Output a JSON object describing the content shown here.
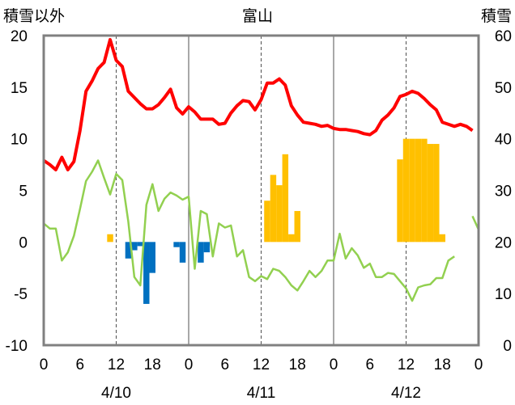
{
  "chart_data": {
    "type": "bar",
    "title": "富山",
    "ylabel_left": "積雪以外",
    "ylabel_right": "積雪",
    "ylim_left": [
      -10,
      20
    ],
    "yticks_left": [
      20,
      15,
      10,
      5,
      0,
      -5,
      -10
    ],
    "ylim_right": [
      0,
      60
    ],
    "yticks_right": [
      60,
      50,
      40,
      30,
      20,
      10,
      0
    ],
    "x_hours": [
      0,
      72
    ],
    "x_ticks": [
      "0",
      "6",
      "12",
      "18",
      "0",
      "6",
      "12",
      "18",
      "0",
      "6",
      "12",
      "18",
      "0"
    ],
    "dates": [
      "4/10",
      "4/11",
      "4/12"
    ],
    "grid": "vertical dashed at 12h, solid at day boundaries",
    "colors": {
      "temperature": "#ff0000",
      "humidity_like": "#92d050",
      "snowfall": "#ffc000",
      "negative_change": "#0070c0",
      "zero_line": "#7030a0",
      "frame": "#808080"
    },
    "series": [
      {
        "key": "red_line",
        "axis": "left",
        "points": [
          [
            0,
            7.9
          ],
          [
            1,
            7.5
          ],
          [
            2,
            7.0
          ],
          [
            3,
            8.2
          ],
          [
            4,
            7.0
          ],
          [
            5,
            7.8
          ],
          [
            6,
            10.8
          ],
          [
            7,
            14.6
          ],
          [
            8,
            15.6
          ],
          [
            9,
            16.8
          ],
          [
            10,
            17.4
          ],
          [
            11,
            19.6
          ],
          [
            12,
            17.6
          ],
          [
            13,
            17.0
          ],
          [
            14,
            14.6
          ],
          [
            15,
            14.0
          ],
          [
            16,
            13.4
          ],
          [
            17,
            12.9
          ],
          [
            18,
            12.9
          ],
          [
            19,
            13.3
          ],
          [
            20,
            14.0
          ],
          [
            21,
            14.8
          ],
          [
            22,
            13.0
          ],
          [
            23,
            12.4
          ],
          [
            24,
            13.1
          ],
          [
            25,
            12.6
          ],
          [
            26,
            11.9
          ],
          [
            27,
            11.9
          ],
          [
            28,
            11.9
          ],
          [
            29,
            11.4
          ],
          [
            30,
            11.5
          ],
          [
            31,
            12.5
          ],
          [
            32,
            13.2
          ],
          [
            33,
            13.7
          ],
          [
            34,
            13.6
          ],
          [
            35,
            12.8
          ],
          [
            36,
            13.8
          ],
          [
            37,
            15.4
          ],
          [
            38,
            15.4
          ],
          [
            39,
            15.8
          ],
          [
            40,
            15.2
          ],
          [
            41,
            13.2
          ],
          [
            42,
            12.3
          ],
          [
            43,
            11.6
          ],
          [
            44,
            11.5
          ],
          [
            45,
            11.4
          ],
          [
            46,
            11.2
          ],
          [
            47,
            11.3
          ],
          [
            48,
            11.0
          ],
          [
            49,
            10.9
          ],
          [
            50,
            10.9
          ],
          [
            51,
            10.8
          ],
          [
            52,
            10.7
          ],
          [
            53,
            10.5
          ],
          [
            54,
            10.4
          ],
          [
            55,
            10.8
          ],
          [
            56,
            11.8
          ],
          [
            57,
            12.3
          ],
          [
            58,
            13.0
          ],
          [
            59,
            14.1
          ],
          [
            60,
            14.3
          ],
          [
            61,
            14.6
          ],
          [
            62,
            14.4
          ],
          [
            63,
            13.9
          ],
          [
            64,
            13.3
          ],
          [
            65,
            12.8
          ],
          [
            66,
            11.6
          ],
          [
            67,
            11.4
          ],
          [
            68,
            11.2
          ],
          [
            69,
            11.4
          ],
          [
            70,
            11.2
          ],
          [
            71,
            10.8
          ]
        ]
      },
      {
        "key": "green_line",
        "axis": "left",
        "points": [
          [
            0,
            1.8
          ],
          [
            1,
            1.3
          ],
          [
            2,
            1.3
          ],
          [
            3,
            -1.8
          ],
          [
            4,
            -1.0
          ],
          [
            5,
            0.6
          ],
          [
            6,
            3.2
          ],
          [
            7,
            5.9
          ],
          [
            8,
            6.8
          ],
          [
            9,
            7.9
          ],
          [
            10,
            6.2
          ],
          [
            11,
            4.6
          ],
          [
            12,
            6.6
          ],
          [
            13,
            6.0
          ],
          [
            14,
            2.0
          ],
          [
            15,
            -3.4
          ],
          [
            16,
            -4.2
          ],
          [
            17,
            3.6
          ],
          [
            18,
            5.6
          ],
          [
            19,
            3.0
          ],
          [
            20,
            4.2
          ],
          [
            21,
            4.8
          ],
          [
            22,
            4.5
          ],
          [
            23,
            4.1
          ],
          [
            24,
            4.4
          ],
          [
            25,
            -2.6
          ],
          [
            26,
            3.0
          ],
          [
            27,
            2.7
          ],
          [
            28,
            -1.4
          ],
          [
            29,
            1.8
          ],
          [
            30,
            1.4
          ],
          [
            31,
            1.6
          ],
          [
            32,
            -1.4
          ],
          [
            33,
            -0.8
          ],
          [
            34,
            -3.4
          ],
          [
            35,
            -3.8
          ],
          [
            36,
            -3.3
          ],
          [
            37,
            -3.6
          ],
          [
            38,
            -2.6
          ],
          [
            39,
            -2.8
          ],
          [
            40,
            -3.4
          ],
          [
            41,
            -4.2
          ],
          [
            42,
            -4.7
          ],
          [
            43,
            -3.8
          ],
          [
            44,
            -2.8
          ],
          [
            45,
            -3.4
          ],
          [
            46,
            -2.8
          ],
          [
            47,
            -1.8
          ],
          [
            48,
            -1.8
          ],
          [
            49,
            0.8
          ],
          [
            50,
            -1.6
          ],
          [
            51,
            -0.6
          ],
          [
            52,
            -1.3
          ],
          [
            53,
            -2.5
          ],
          [
            54,
            -2.1
          ],
          [
            55,
            -3.4
          ],
          [
            56,
            -3.4
          ],
          [
            57,
            -3.0
          ],
          [
            58,
            -3.1
          ],
          [
            59,
            -3.8
          ],
          [
            60,
            -4.5
          ],
          [
            61,
            -5.7
          ],
          [
            62,
            -4.4
          ],
          [
            63,
            -4.2
          ],
          [
            64,
            -4.1
          ],
          [
            65,
            -3.5
          ],
          [
            66,
            -3.5
          ],
          [
            67,
            -1.8
          ],
          [
            68,
            -1.4
          ],
          [
            69,
            null
          ],
          [
            70,
            null
          ],
          [
            71,
            null
          ],
          [
            72,
            null
          ],
          [
            73,
            null
          ],
          [
            74,
            null
          ],
          [
            75,
            null
          ],
          [
            76,
            null
          ],
          [
            77,
            null
          ],
          [
            78,
            null
          ],
          [
            79,
            null
          ],
          [
            80,
            null
          ],
          [
            81,
            null
          ],
          [
            82,
            null
          ],
          [
            83,
            null
          ],
          [
            84,
            null
          ],
          [
            85,
            null
          ],
          [
            86,
            null
          ],
          [
            87,
            null
          ],
          [
            88,
            null
          ],
          [
            89,
            null
          ],
          [
            90,
            null
          ],
          [
            91,
            null
          ],
          [
            92,
            null
          ],
          [
            93,
            null
          ],
          [
            94,
            null
          ],
          [
            95,
            null
          ]
        ]
      },
      {
        "key": "green_tail",
        "axis": "left",
        "points": [
          [
            71,
            2.5
          ],
          [
            72,
            1.2
          ]
        ]
      }
    ],
    "bars_right": [
      [
        11,
        21.5
      ],
      [
        37,
        28
      ],
      [
        38,
        33
      ],
      [
        39,
        31
      ],
      [
        40,
        37
      ],
      [
        41,
        21.5
      ],
      [
        42,
        26
      ],
      [
        59,
        36
      ],
      [
        60,
        40
      ],
      [
        61,
        40
      ],
      [
        62,
        40
      ],
      [
        63,
        40
      ],
      [
        64,
        39
      ],
      [
        65,
        39
      ],
      [
        66,
        21.5
      ]
    ],
    "bars_left_negative": [
      [
        14,
        -1.6
      ],
      [
        15,
        -0.8
      ],
      [
        16,
        -0.4
      ],
      [
        17,
        -6.0
      ],
      [
        18,
        -3.0
      ],
      [
        22,
        -0.5
      ],
      [
        23,
        -2.0
      ],
      [
        26,
        -2.0
      ],
      [
        27,
        -1.0
      ]
    ]
  }
}
